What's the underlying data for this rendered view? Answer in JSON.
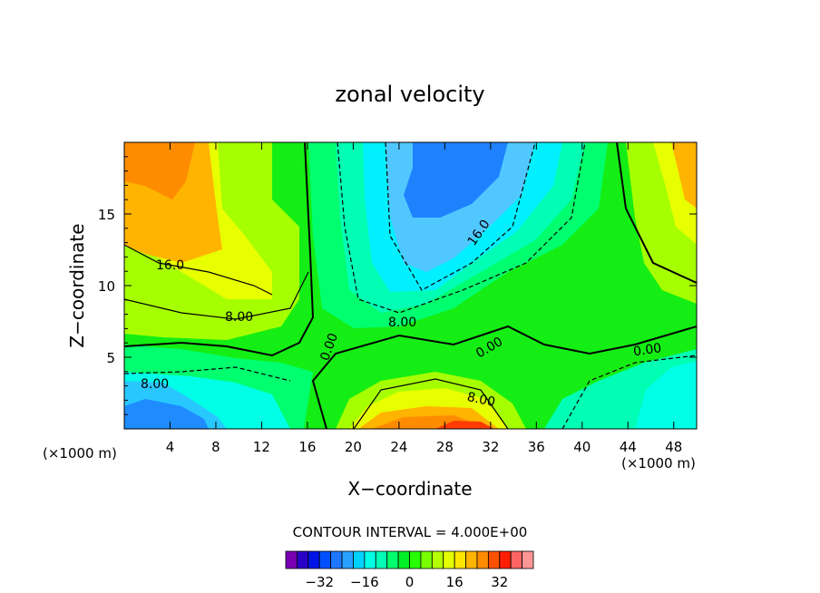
{
  "chart_data": {
    "type": "heatmap",
    "title": "zonal velocity",
    "xlabel": "X−coordinate",
    "ylabel": "Z−coordinate",
    "x_unit": "(×1000 m)",
    "x_unit_right": "(×1000 m)",
    "xlim": [
      0,
      50
    ],
    "ylim": [
      0,
      20
    ],
    "x_ticks": [
      "4",
      "8",
      "12",
      "16",
      "20",
      "24",
      "28",
      "32",
      "36",
      "40",
      "44",
      "48"
    ],
    "y_ticks": [
      "5",
      "10",
      "15"
    ],
    "contour_interval_text": "CONTOUR INTERVAL = 4.000E+00",
    "contour_labels": [
      "16.0",
      "8.00",
      "0.00",
      "8.00",
      "16.0",
      "0.00",
      "8.00",
      "0.00",
      "8.00"
    ],
    "colorbar": {
      "tick_labels": [
        "−32",
        "−16",
        "0",
        "16",
        "32"
      ],
      "colors": [
        "#7a00b4",
        "#2a00c8",
        "#0014e6",
        "#0050ff",
        "#1e78ff",
        "#28a0ff",
        "#00d2ff",
        "#00ffe6",
        "#00ffb4",
        "#00ff6e",
        "#00f028",
        "#28ff00",
        "#78ff00",
        "#b4ff00",
        "#e6ff00",
        "#ffe600",
        "#ffb400",
        "#ff8c00",
        "#ff5000",
        "#ff1e00",
        "#ff6464",
        "#ff9696"
      ]
    }
  }
}
